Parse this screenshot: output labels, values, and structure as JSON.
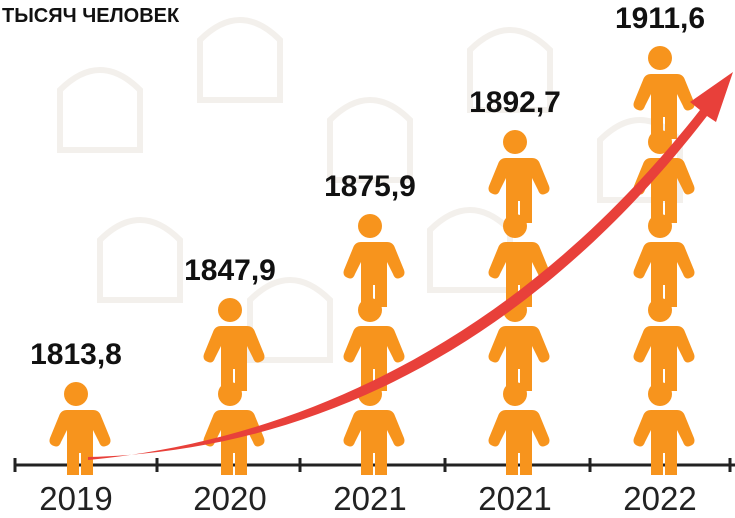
{
  "chart_data": {
    "type": "pictogram",
    "title": "ТЫСЯЧ ЧЕЛОВЕК",
    "categories": [
      "2019",
      "2020",
      "2021",
      "2021",
      "2022"
    ],
    "values": [
      1813.8,
      1847.9,
      1875.9,
      1892.7,
      1911.6
    ],
    "value_labels": [
      "1813,8",
      "1847,9",
      "1875,9",
      "1892,7",
      "1911,6"
    ],
    "color": "#f7941d",
    "arrow_color": "#e8403a"
  }
}
